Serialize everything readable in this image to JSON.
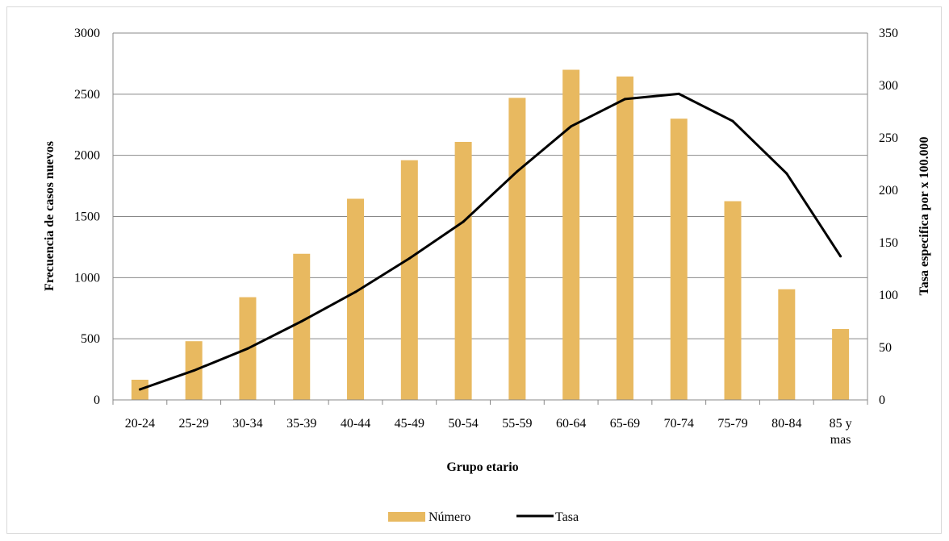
{
  "chart_data": {
    "type": "bar",
    "title": "",
    "xlabel": "Grupo etario",
    "ylabel": "Frecuencia de casos nuevos",
    "y2label": "Tasa especifica por x 100.000",
    "categories": [
      "20-24",
      "25-29",
      "30-34",
      "35-39",
      "40-44",
      "45-49",
      "50-54",
      "55-59",
      "60-64",
      "65-69",
      "70-74",
      "75-79",
      "80-84",
      "85 y mas"
    ],
    "ylim": [
      0,
      3000
    ],
    "y2lim": [
      0,
      350
    ],
    "yticks": [
      "0",
      "500",
      "1000",
      "1500",
      "2000",
      "2500",
      "3000"
    ],
    "y2ticks": [
      "0",
      "50",
      "100",
      "150",
      "200",
      "250",
      "300",
      "350"
    ],
    "grid": true,
    "legend_position": "bottom",
    "series": [
      {
        "name": "Número",
        "type": "bar",
        "axis": "left",
        "color": "#E8B960",
        "values": [
          165,
          480,
          840,
          1195,
          1645,
          1960,
          2110,
          2470,
          2700,
          2645,
          2300,
          1625,
          905,
          580
        ]
      },
      {
        "name": "Tasa",
        "type": "line",
        "axis": "right",
        "color": "#000000",
        "values": [
          10,
          28,
          49,
          75,
          103,
          135,
          170,
          218,
          261,
          287,
          292,
          266,
          216,
          137
        ]
      }
    ]
  }
}
